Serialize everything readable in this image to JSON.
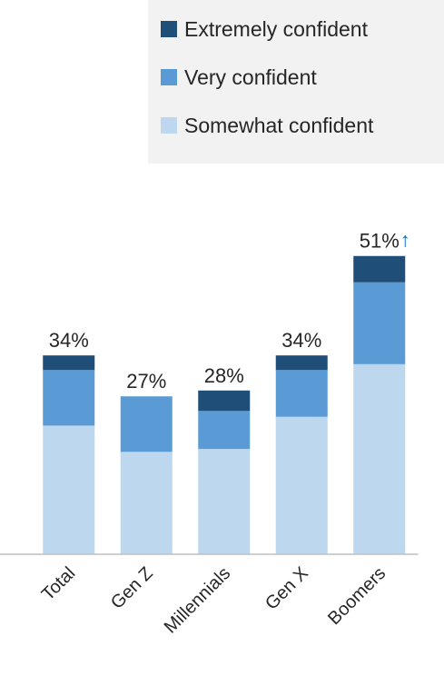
{
  "chart_data": {
    "type": "stacked-bar",
    "categories": [
      "Total",
      "Gen Z",
      "Millennials",
      "Gen X",
      "Boomers"
    ],
    "series": [
      {
        "name": "Somewhat confident",
        "color": "#bdd7ee",
        "values": [
          22,
          17.5,
          18,
          23.5,
          32.5
        ]
      },
      {
        "name": "Very confident",
        "color": "#5b9bd5",
        "values": [
          9.5,
          9.5,
          6.5,
          8,
          14
        ]
      },
      {
        "name": "Extremely confident",
        "color": "#1f4e79",
        "values": [
          2.5,
          0,
          3.5,
          2.5,
          4.5
        ]
      }
    ],
    "totals": [
      34,
      27,
      28,
      34,
      51
    ],
    "total_labels": [
      "34%",
      "27%",
      "28%",
      "34%",
      "51%"
    ],
    "annotation": {
      "category": 4,
      "text": "↑",
      "color": "#0070c0"
    },
    "ylim": [
      0,
      55
    ]
  }
}
